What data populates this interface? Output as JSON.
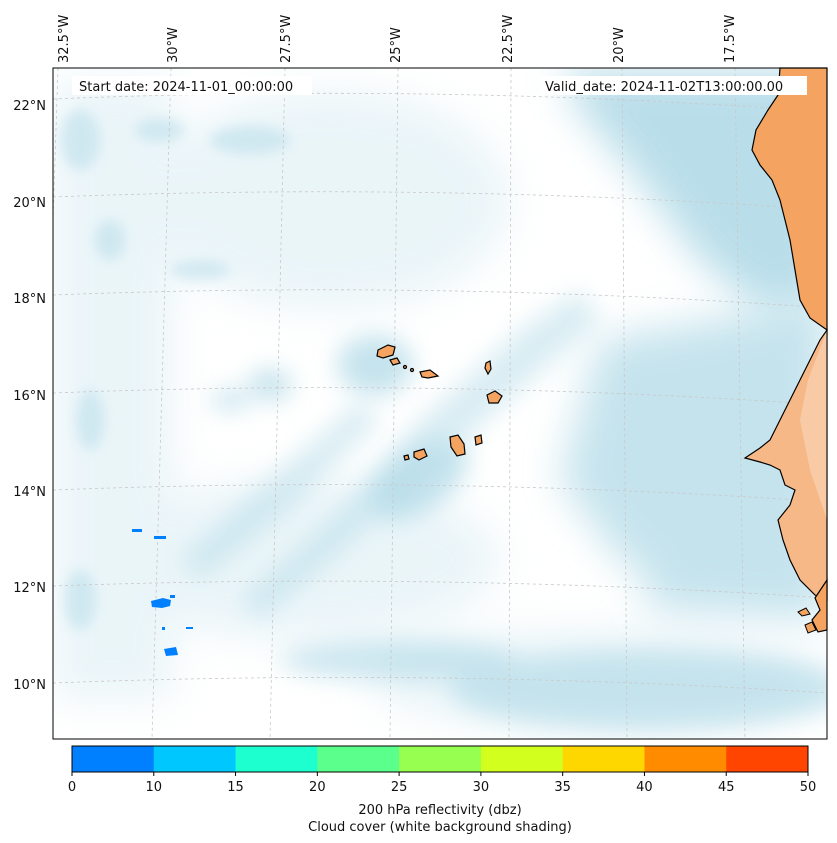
{
  "map": {
    "start_label": "Start date: 2024-11-01_00:00:00",
    "valid_label": "Valid_date: 2024-11-02T13:00:00.00",
    "lon_ticks": [
      "32.5°W",
      "30°W",
      "27.5°W",
      "25°W",
      "22.5°W",
      "20°W",
      "17.5°W"
    ],
    "lat_ticks": [
      "22°N",
      "20°N",
      "18°N",
      "16°N",
      "14°N",
      "12°N",
      "10°N"
    ],
    "gridlines": true,
    "region": "Cape Verde and West African coast"
  },
  "colors": {
    "land": "#f4a460",
    "cloud": "#add8e6",
    "reflectivity_low": "#0080ff",
    "border": "#000000"
  },
  "colorbar": {
    "ticks": [
      "0",
      "10",
      "15",
      "20",
      "25",
      "30",
      "35",
      "40",
      "45",
      "50"
    ],
    "colors": [
      "#0080ff",
      "#00c8ff",
      "#1effd0",
      "#5aff8c",
      "#96ff50",
      "#d2ff1e",
      "#ffd700",
      "#ff8c00",
      "#ff4500"
    ],
    "label_line1": "200 hPa reflectivity (dbz)",
    "label_line2": "Cloud cover (white background shading)"
  }
}
